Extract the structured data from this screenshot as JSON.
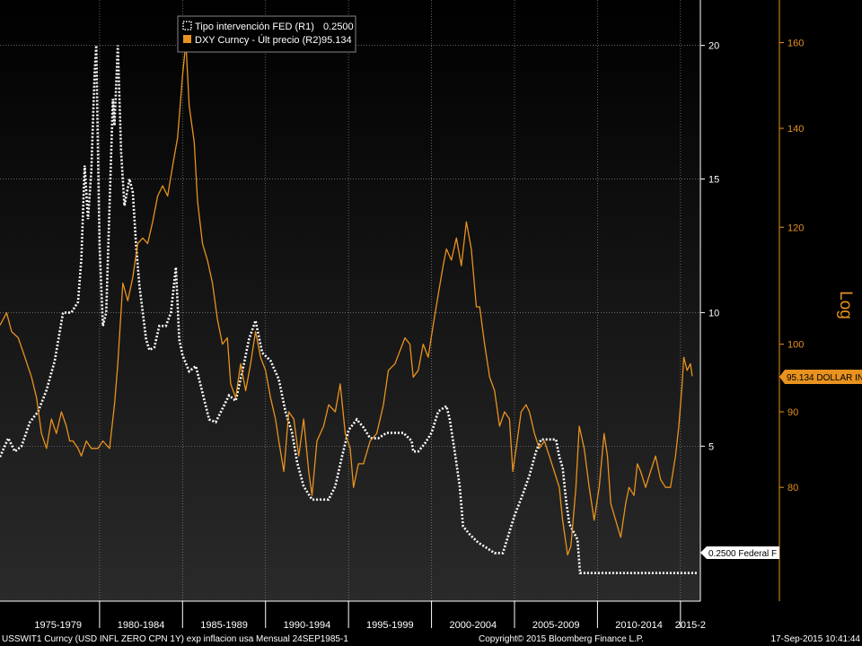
{
  "legend": {
    "items": [
      {
        "label": "Tipo intervención FED (R1)",
        "value": "0.2500",
        "swatch": "dotted-white"
      },
      {
        "label": "DXY Curncy - Últ precio (R2)",
        "value": "95.134",
        "swatch": "orange"
      }
    ]
  },
  "right_axis_label": "Log",
  "last_value_tags": {
    "fed": "0.2500 Federal F",
    "dxy": "95.134 DOLLAR IN"
  },
  "footer": {
    "source": "USSWIT1 Curncy (USD INFL ZERO CPN    1Y) exp inflacion usa  Mensual 24SEP1985-1",
    "copyright": "Copyright© 2015 Bloomberg Finance L.P.",
    "timestamp": "17-Sep-2015 10:41:44"
  },
  "colors": {
    "background_top": "#000000",
    "background_bottom": "#2a2a2a",
    "fed_line": "#ffffff",
    "dxy_line": "#e8921f",
    "dxy_axis": "#e8921f",
    "grid": "#8a8a8a"
  },
  "chart_data": {
    "type": "line",
    "x_range": [
      1974.0,
      2016.2
    ],
    "x_period_labels": [
      {
        "label": "1975-1979",
        "start": 1975,
        "end": 1980
      },
      {
        "label": "1980-1984",
        "start": 1980,
        "end": 1985
      },
      {
        "label": "1985-1989",
        "start": 1985,
        "end": 1990
      },
      {
        "label": "1990-1994",
        "start": 1990,
        "end": 1995
      },
      {
        "label": "1995-1999",
        "start": 1995,
        "end": 2000
      },
      {
        "label": "2000-2004",
        "start": 2000,
        "end": 2005
      },
      {
        "label": "2005-2009",
        "start": 2005,
        "end": 2010
      },
      {
        "label": "2010-2014",
        "start": 2010,
        "end": 2015
      },
      {
        "label": "2015-2",
        "start": 2015,
        "end": 2016.2
      }
    ],
    "axes": {
      "R1": {
        "ticks": [
          5,
          10,
          15,
          20
        ],
        "range": [
          -0.8,
          21.7
        ],
        "scale": "linear"
      },
      "R2": {
        "ticks": [
          80,
          90,
          100,
          120,
          140,
          160
        ],
        "range": [
          67,
          171
        ],
        "scale": "log"
      }
    },
    "grid": true,
    "legend_position": "top-left",
    "series": [
      {
        "name": "Tipo intervención FED (R1)",
        "axis": "R1",
        "style": "dotted",
        "points": [
          [
            1974.0,
            4.6
          ],
          [
            1974.5,
            5.3
          ],
          [
            1974.9,
            4.8
          ],
          [
            1975.3,
            5.0
          ],
          [
            1975.8,
            5.9
          ],
          [
            1976.3,
            6.3
          ],
          [
            1976.8,
            7.1
          ],
          [
            1977.3,
            8.2
          ],
          [
            1977.8,
            10.0
          ],
          [
            1978.3,
            10.0
          ],
          [
            1978.7,
            10.4
          ],
          [
            1978.9,
            12.0
          ],
          [
            1979.1,
            15.5
          ],
          [
            1979.3,
            13.5
          ],
          [
            1979.5,
            15.3
          ],
          [
            1979.7,
            19.0
          ],
          [
            1979.8,
            20.0
          ],
          [
            1979.9,
            16.0
          ],
          [
            1980.0,
            12.5
          ],
          [
            1980.2,
            9.5
          ],
          [
            1980.4,
            10.0
          ],
          [
            1980.6,
            14.0
          ],
          [
            1980.8,
            18.0
          ],
          [
            1980.9,
            17.0
          ],
          [
            1981.1,
            20.0
          ],
          [
            1981.3,
            16.0
          ],
          [
            1981.5,
            14.0
          ],
          [
            1981.8,
            15.0
          ],
          [
            1982.0,
            14.5
          ],
          [
            1982.2,
            12.5
          ],
          [
            1982.4,
            11.0
          ],
          [
            1982.6,
            10.0
          ],
          [
            1982.8,
            9.0
          ],
          [
            1983.0,
            8.6
          ],
          [
            1983.3,
            8.7
          ],
          [
            1983.6,
            9.5
          ],
          [
            1983.8,
            9.5
          ],
          [
            1984.0,
            9.5
          ],
          [
            1984.3,
            10.0
          ],
          [
            1984.6,
            11.7
          ],
          [
            1984.8,
            9.0
          ],
          [
            1985.0,
            8.4
          ],
          [
            1985.4,
            7.8
          ],
          [
            1985.8,
            8.0
          ],
          [
            1986.2,
            7.0
          ],
          [
            1986.6,
            6.0
          ],
          [
            1987.0,
            5.9
          ],
          [
            1987.4,
            6.4
          ],
          [
            1987.8,
            6.9
          ],
          [
            1988.2,
            6.7
          ],
          [
            1988.6,
            7.8
          ],
          [
            1989.0,
            9.0
          ],
          [
            1989.4,
            9.7
          ],
          [
            1989.8,
            8.5
          ],
          [
            1990.3,
            8.2
          ],
          [
            1990.8,
            7.5
          ],
          [
            1991.2,
            6.3
          ],
          [
            1991.6,
            5.5
          ],
          [
            1991.9,
            4.4
          ],
          [
            1992.3,
            3.5
          ],
          [
            1992.8,
            3.0
          ],
          [
            1993.3,
            3.0
          ],
          [
            1993.8,
            3.0
          ],
          [
            1994.2,
            3.5
          ],
          [
            1994.6,
            4.6
          ],
          [
            1995.0,
            5.6
          ],
          [
            1995.5,
            6.0
          ],
          [
            1995.9,
            5.7
          ],
          [
            1996.3,
            5.3
          ],
          [
            1996.8,
            5.3
          ],
          [
            1997.3,
            5.5
          ],
          [
            1997.8,
            5.5
          ],
          [
            1998.3,
            5.5
          ],
          [
            1998.8,
            5.2
          ],
          [
            1998.9,
            4.8
          ],
          [
            1999.2,
            4.8
          ],
          [
            1999.6,
            5.1
          ],
          [
            2000.0,
            5.5
          ],
          [
            2000.4,
            6.3
          ],
          [
            2000.9,
            6.5
          ],
          [
            2001.1,
            6.0
          ],
          [
            2001.4,
            4.8
          ],
          [
            2001.7,
            3.5
          ],
          [
            2001.9,
            2.0
          ],
          [
            2002.3,
            1.7
          ],
          [
            2002.8,
            1.4
          ],
          [
            2003.3,
            1.2
          ],
          [
            2003.8,
            1.0
          ],
          [
            2004.3,
            1.0
          ],
          [
            2004.6,
            1.6
          ],
          [
            2005.0,
            2.4
          ],
          [
            2005.5,
            3.2
          ],
          [
            2005.9,
            3.9
          ],
          [
            2006.3,
            4.8
          ],
          [
            2006.6,
            5.25
          ],
          [
            2007.5,
            5.25
          ],
          [
            2007.7,
            4.6
          ],
          [
            2007.9,
            4.2
          ],
          [
            2008.1,
            3.0
          ],
          [
            2008.3,
            2.1
          ],
          [
            2008.8,
            1.5
          ],
          [
            2008.95,
            0.25
          ],
          [
            2016.0,
            0.25
          ]
        ]
      },
      {
        "name": "DXY Curncy - Últ precio (R2)",
        "axis": "R2",
        "style": "solid",
        "points": [
          [
            1974.0,
            103
          ],
          [
            1974.4,
            105
          ],
          [
            1974.7,
            102
          ],
          [
            1975.1,
            101
          ],
          [
            1975.5,
            98
          ],
          [
            1975.9,
            95
          ],
          [
            1976.2,
            92
          ],
          [
            1976.5,
            87
          ],
          [
            1976.8,
            85
          ],
          [
            1977.1,
            89
          ],
          [
            1977.4,
            87
          ],
          [
            1977.7,
            90
          ],
          [
            1978.0,
            88
          ],
          [
            1978.2,
            86
          ],
          [
            1978.4,
            86
          ],
          [
            1978.7,
            85
          ],
          [
            1978.9,
            84
          ],
          [
            1979.2,
            86
          ],
          [
            1979.5,
            85
          ],
          [
            1979.9,
            85
          ],
          [
            1980.2,
            86
          ],
          [
            1980.6,
            85
          ],
          [
            1980.9,
            91
          ],
          [
            1981.1,
            97
          ],
          [
            1981.4,
            110
          ],
          [
            1981.7,
            107
          ],
          [
            1982.0,
            111
          ],
          [
            1982.3,
            117
          ],
          [
            1982.6,
            118
          ],
          [
            1982.9,
            117
          ],
          [
            1983.2,
            121
          ],
          [
            1983.5,
            126
          ],
          [
            1983.8,
            128
          ],
          [
            1984.1,
            126
          ],
          [
            1984.4,
            132
          ],
          [
            1984.7,
            138
          ],
          [
            1985.0,
            152
          ],
          [
            1985.2,
            160
          ],
          [
            1985.4,
            145
          ],
          [
            1985.7,
            137
          ],
          [
            1985.9,
            125
          ],
          [
            1986.2,
            117
          ],
          [
            1986.5,
            114
          ],
          [
            1986.8,
            110
          ],
          [
            1987.1,
            104
          ],
          [
            1987.4,
            100
          ],
          [
            1987.7,
            101
          ],
          [
            1987.9,
            94
          ],
          [
            1988.2,
            92
          ],
          [
            1988.5,
            97
          ],
          [
            1988.8,
            93
          ],
          [
            1989.1,
            97
          ],
          [
            1989.4,
            102
          ],
          [
            1989.7,
            98
          ],
          [
            1990.0,
            96
          ],
          [
            1990.3,
            92
          ],
          [
            1990.6,
            89
          ],
          [
            1990.8,
            86
          ],
          [
            1991.1,
            82
          ],
          [
            1991.4,
            90
          ],
          [
            1991.7,
            89
          ],
          [
            1992.0,
            84
          ],
          [
            1992.3,
            89
          ],
          [
            1992.6,
            82
          ],
          [
            1992.8,
            79
          ],
          [
            1993.1,
            86
          ],
          [
            1993.5,
            88
          ],
          [
            1993.8,
            91
          ],
          [
            1994.2,
            90
          ],
          [
            1994.5,
            94
          ],
          [
            1994.8,
            87
          ],
          [
            1995.1,
            85
          ],
          [
            1995.3,
            80
          ],
          [
            1995.6,
            83
          ],
          [
            1995.9,
            83
          ],
          [
            1996.3,
            86
          ],
          [
            1996.7,
            87
          ],
          [
            1997.1,
            91
          ],
          [
            1997.4,
            96
          ],
          [
            1997.8,
            97
          ],
          [
            1998.1,
            99
          ],
          [
            1998.4,
            101
          ],
          [
            1998.7,
            100
          ],
          [
            1998.9,
            95
          ],
          [
            1999.2,
            96
          ],
          [
            1999.5,
            100
          ],
          [
            1999.8,
            98
          ],
          [
            2000.1,
            103
          ],
          [
            2000.4,
            108
          ],
          [
            2000.7,
            113
          ],
          [
            2000.9,
            116
          ],
          [
            2001.2,
            114
          ],
          [
            2001.5,
            118
          ],
          [
            2001.8,
            113
          ],
          [
            2002.1,
            121
          ],
          [
            2002.4,
            116
          ],
          [
            2002.7,
            106
          ],
          [
            2002.9,
            106
          ],
          [
            2003.2,
            100
          ],
          [
            2003.5,
            95
          ],
          [
            2003.8,
            93
          ],
          [
            2004.1,
            88
          ],
          [
            2004.4,
            90
          ],
          [
            2004.7,
            89
          ],
          [
            2004.9,
            82
          ],
          [
            2005.1,
            85
          ],
          [
            2005.4,
            90
          ],
          [
            2005.7,
            91
          ],
          [
            2005.9,
            90
          ],
          [
            2006.2,
            87
          ],
          [
            2006.5,
            85
          ],
          [
            2006.8,
            86
          ],
          [
            2007.1,
            84
          ],
          [
            2007.4,
            82
          ],
          [
            2007.7,
            80
          ],
          [
            2007.9,
            76
          ],
          [
            2008.2,
            72
          ],
          [
            2008.4,
            73
          ],
          [
            2008.7,
            80
          ],
          [
            2008.9,
            88
          ],
          [
            2009.2,
            85
          ],
          [
            2009.5,
            80
          ],
          [
            2009.8,
            76
          ],
          [
            2010.1,
            80
          ],
          [
            2010.4,
            87
          ],
          [
            2010.6,
            84
          ],
          [
            2010.8,
            78
          ],
          [
            2011.1,
            76
          ],
          [
            2011.4,
            74
          ],
          [
            2011.7,
            78
          ],
          [
            2011.9,
            80
          ],
          [
            2012.2,
            79
          ],
          [
            2012.4,
            83
          ],
          [
            2012.6,
            82
          ],
          [
            2012.9,
            80
          ],
          [
            2013.2,
            82
          ],
          [
            2013.5,
            84
          ],
          [
            2013.8,
            81
          ],
          [
            2014.1,
            80
          ],
          [
            2014.4,
            80
          ],
          [
            2014.7,
            84
          ],
          [
            2014.9,
            88
          ],
          [
            2015.1,
            94
          ],
          [
            2015.2,
            98
          ],
          [
            2015.4,
            96
          ],
          [
            2015.6,
            97
          ],
          [
            2015.71,
            95.134
          ]
        ]
      }
    ]
  }
}
